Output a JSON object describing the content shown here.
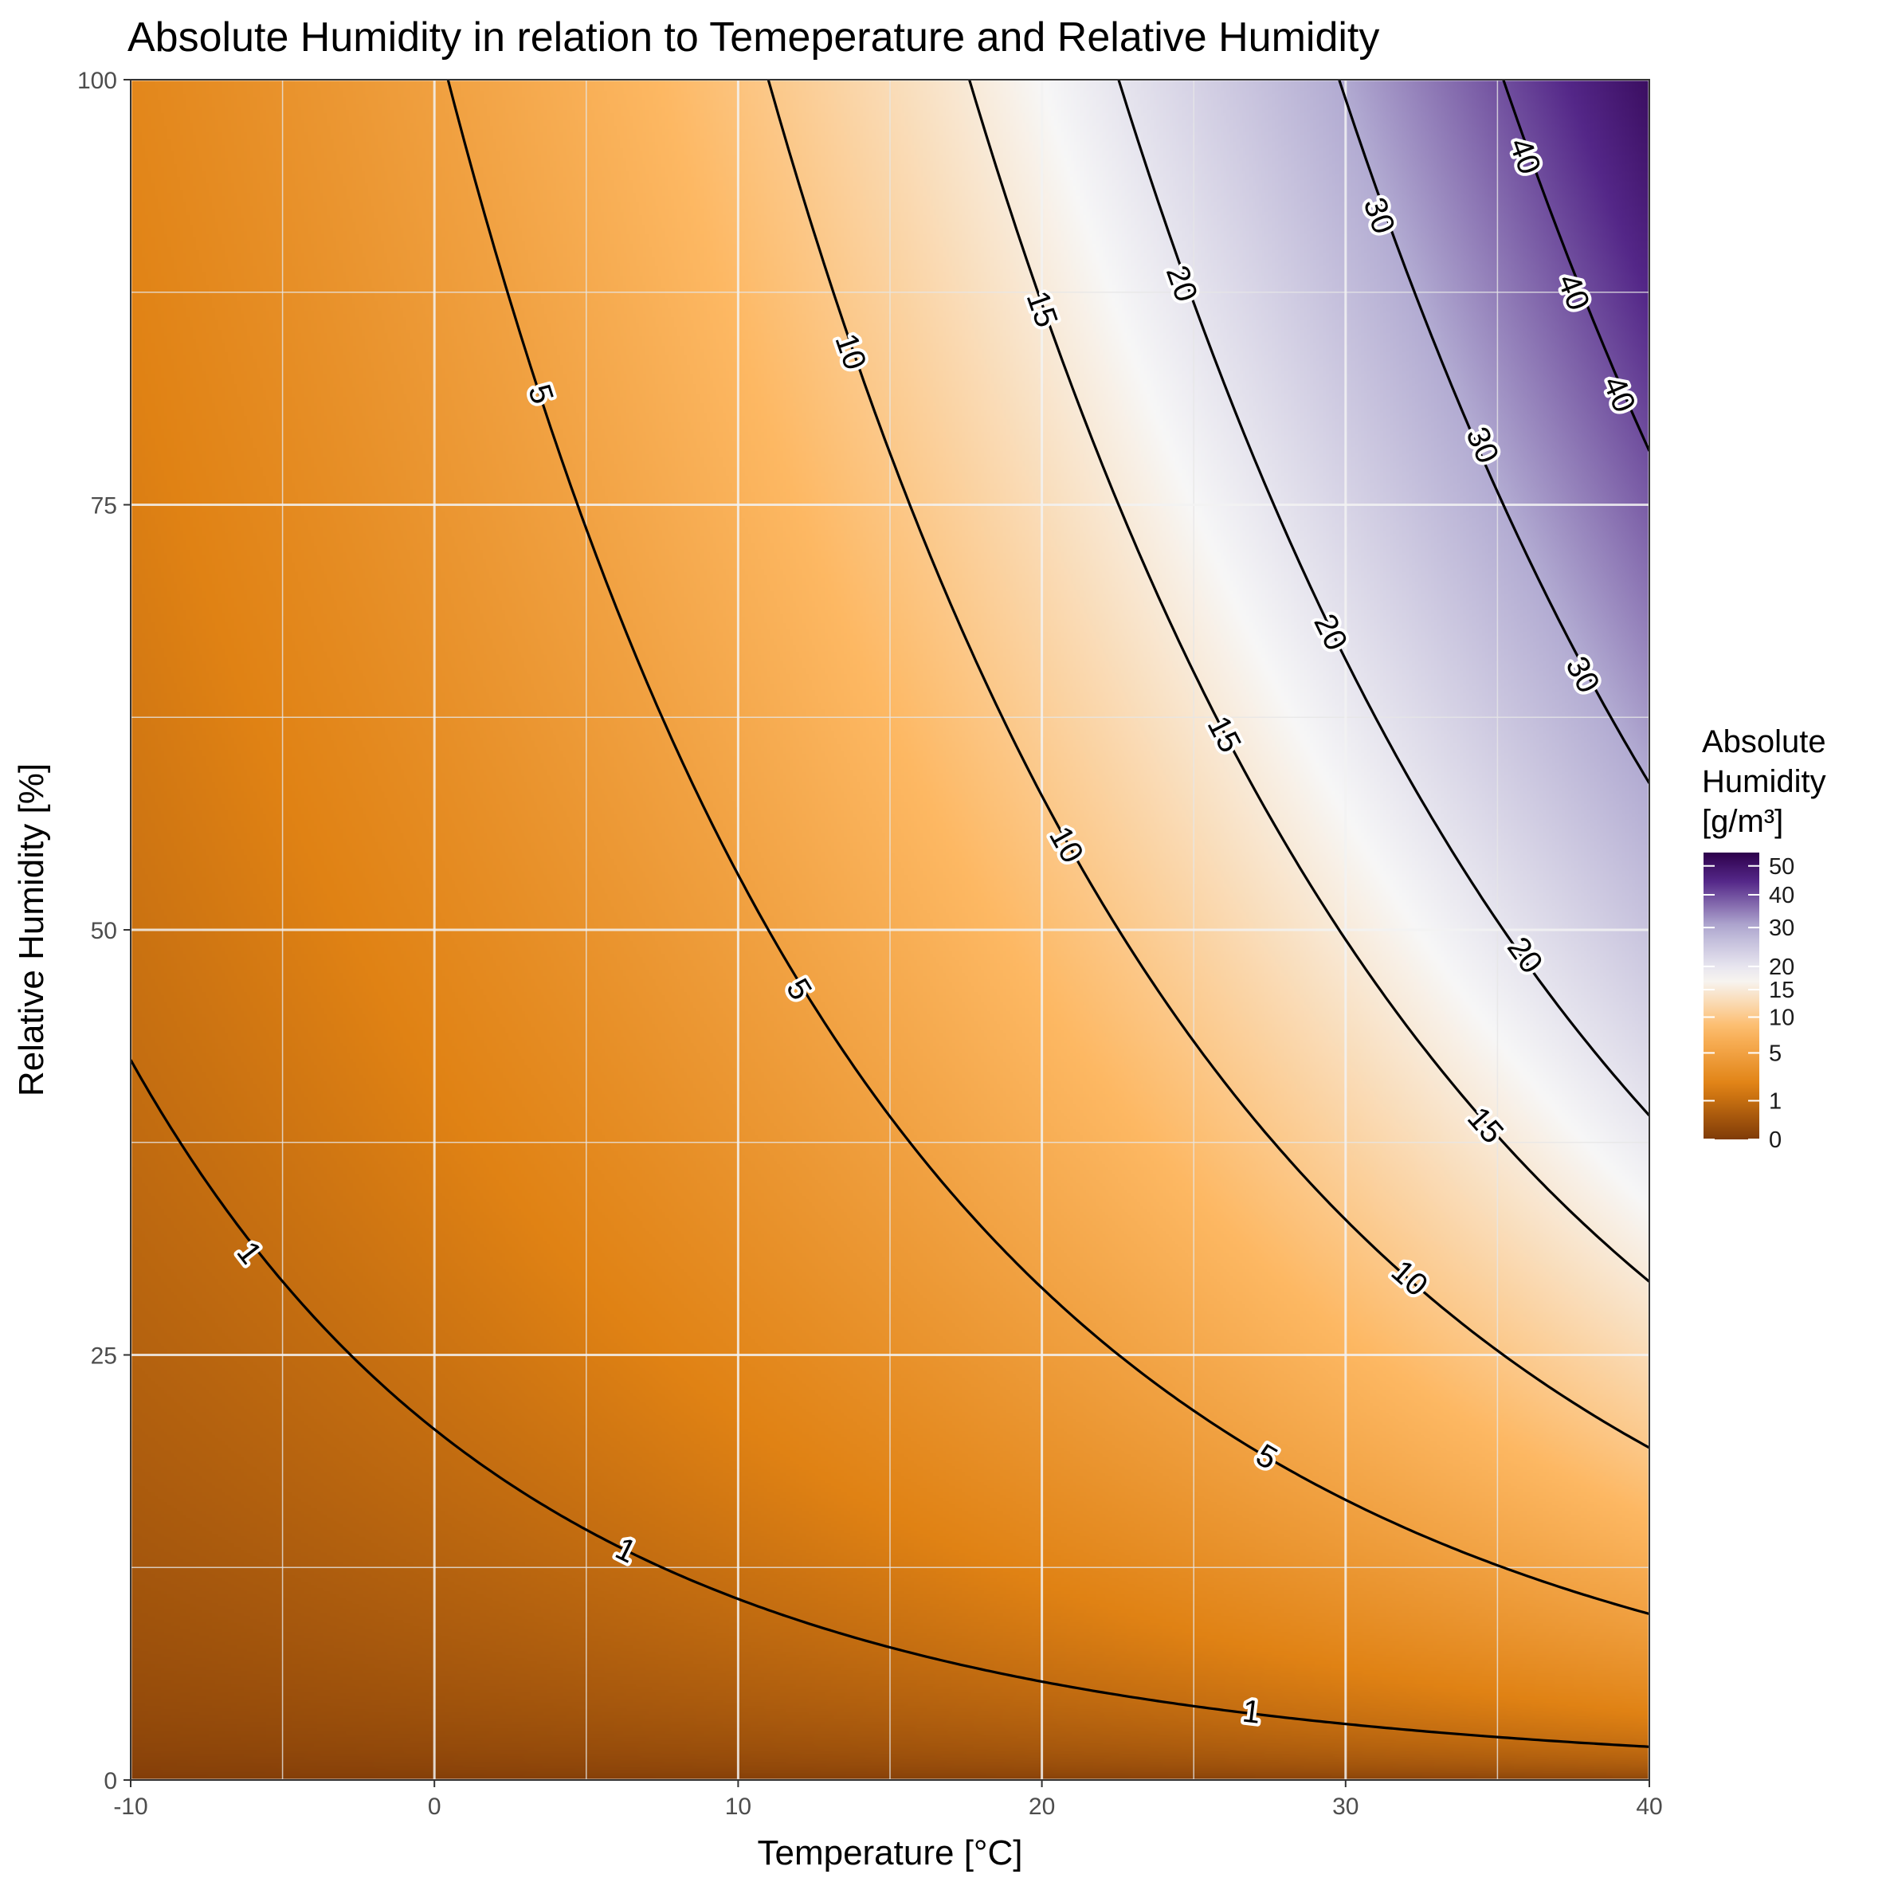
{
  "chart_data": {
    "type": "heatmap",
    "title": "Absolute Humidity in relation to Temeperature and Relative Humidity",
    "xlabel": "Temperature [°C]",
    "ylabel": "Relative Humidity [%]",
    "xlim": [
      -10,
      40
    ],
    "ylim": [
      0,
      100
    ],
    "x_ticks": [
      "-10",
      "0",
      "10",
      "20",
      "30",
      "40"
    ],
    "y_ticks": [
      "0",
      "25",
      "50",
      "75",
      "100"
    ],
    "grid": true,
    "legend": {
      "title_lines": [
        "Absolute",
        "Humidity",
        "[g/m³]"
      ],
      "placement": "right",
      "labels": [
        "0",
        "1",
        "5",
        "10",
        "15",
        "20",
        "30",
        "40",
        "50"
      ],
      "colors": {
        "low": "#7f3b08",
        "low_mid": "#e08214",
        "mid_light": "#fdb863",
        "mid": "#f7f7f7",
        "high_light": "#b2abd2",
        "high_mid": "#542788",
        "high": "#2d004b"
      }
    },
    "contour_levels": [
      1,
      5,
      10,
      15,
      20,
      30,
      40
    ],
    "contour_labels": [
      {
        "text": "1",
        "x": -6.1,
        "y": 31
      },
      {
        "text": "1",
        "x": 6.3,
        "y": 13.5
      },
      {
        "text": "1",
        "x": 26.9,
        "y": 4
      },
      {
        "text": "5",
        "x": 3.5,
        "y": 81.5
      },
      {
        "text": "5",
        "x": 12,
        "y": 46.5
      },
      {
        "text": "5",
        "x": 27.4,
        "y": 19
      },
      {
        "text": "10",
        "x": 13.7,
        "y": 84
      },
      {
        "text": "10",
        "x": 20.8,
        "y": 55
      },
      {
        "text": "10",
        "x": 32.1,
        "y": 29.5
      },
      {
        "text": "15",
        "x": 20,
        "y": 86.5
      },
      {
        "text": "15",
        "x": 26,
        "y": 61.5
      },
      {
        "text": "15",
        "x": 34.6,
        "y": 38.5
      },
      {
        "text": "20",
        "x": 24.6,
        "y": 88
      },
      {
        "text": "20",
        "x": 29.5,
        "y": 67.5
      },
      {
        "text": "20",
        "x": 35.9,
        "y": 48.5
      },
      {
        "text": "30",
        "x": 31.1,
        "y": 92
      },
      {
        "text": "30",
        "x": 34.5,
        "y": 78.5
      },
      {
        "text": "30",
        "x": 37.8,
        "y": 65
      },
      {
        "text": "40",
        "x": 35.9,
        "y": 95.5
      },
      {
        "text": "40",
        "x": 37.5,
        "y": 87.5
      },
      {
        "text": "40",
        "x": 39,
        "y": 81.5
      }
    ]
  }
}
